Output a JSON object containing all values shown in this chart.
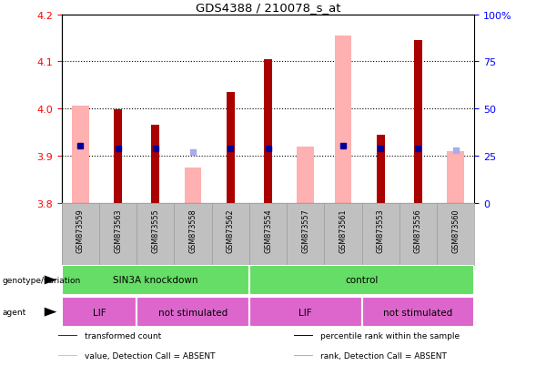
{
  "title": "GDS4388 / 210078_s_at",
  "samples": [
    "GSM873559",
    "GSM873563",
    "GSM873555",
    "GSM873558",
    "GSM873562",
    "GSM873554",
    "GSM873557",
    "GSM873561",
    "GSM873553",
    "GSM873556",
    "GSM873560"
  ],
  "red_values": [
    null,
    3.999,
    3.965,
    null,
    4.035,
    4.105,
    null,
    null,
    3.945,
    4.145,
    null
  ],
  "pink_values": [
    4.005,
    null,
    null,
    3.875,
    null,
    null,
    3.918,
    4.155,
    null,
    null,
    3.91
  ],
  "blue_rank_values": [
    30,
    29,
    29,
    null,
    29,
    29,
    null,
    30,
    29,
    29,
    null
  ],
  "light_blue_rank_values": [
    null,
    null,
    null,
    27,
    null,
    null,
    null,
    null,
    null,
    null,
    28
  ],
  "ylim_left": [
    3.8,
    4.2
  ],
  "ylim_right": [
    0,
    100
  ],
  "yticks_left": [
    3.8,
    3.9,
    4.0,
    4.1,
    4.2
  ],
  "yticks_right": [
    0,
    25,
    50,
    75,
    100
  ],
  "ytick_labels_right": [
    "0",
    "25",
    "50",
    "75",
    "100%"
  ],
  "red_color": "#AA0000",
  "pink_color": "#FFB0B0",
  "blue_color": "#000099",
  "light_blue_color": "#AAAAEE",
  "green_color": "#66DD66",
  "magenta_color": "#DD66CC",
  "gray_color": "#C0C0C0",
  "legend_items": [
    {
      "label": "transformed count",
      "color": "#AA0000"
    },
    {
      "label": "percentile rank within the sample",
      "color": "#000099"
    },
    {
      "label": "value, Detection Call = ABSENT",
      "color": "#FFB0B0"
    },
    {
      "label": "rank, Detection Call = ABSENT",
      "color": "#AAAAEE"
    }
  ]
}
